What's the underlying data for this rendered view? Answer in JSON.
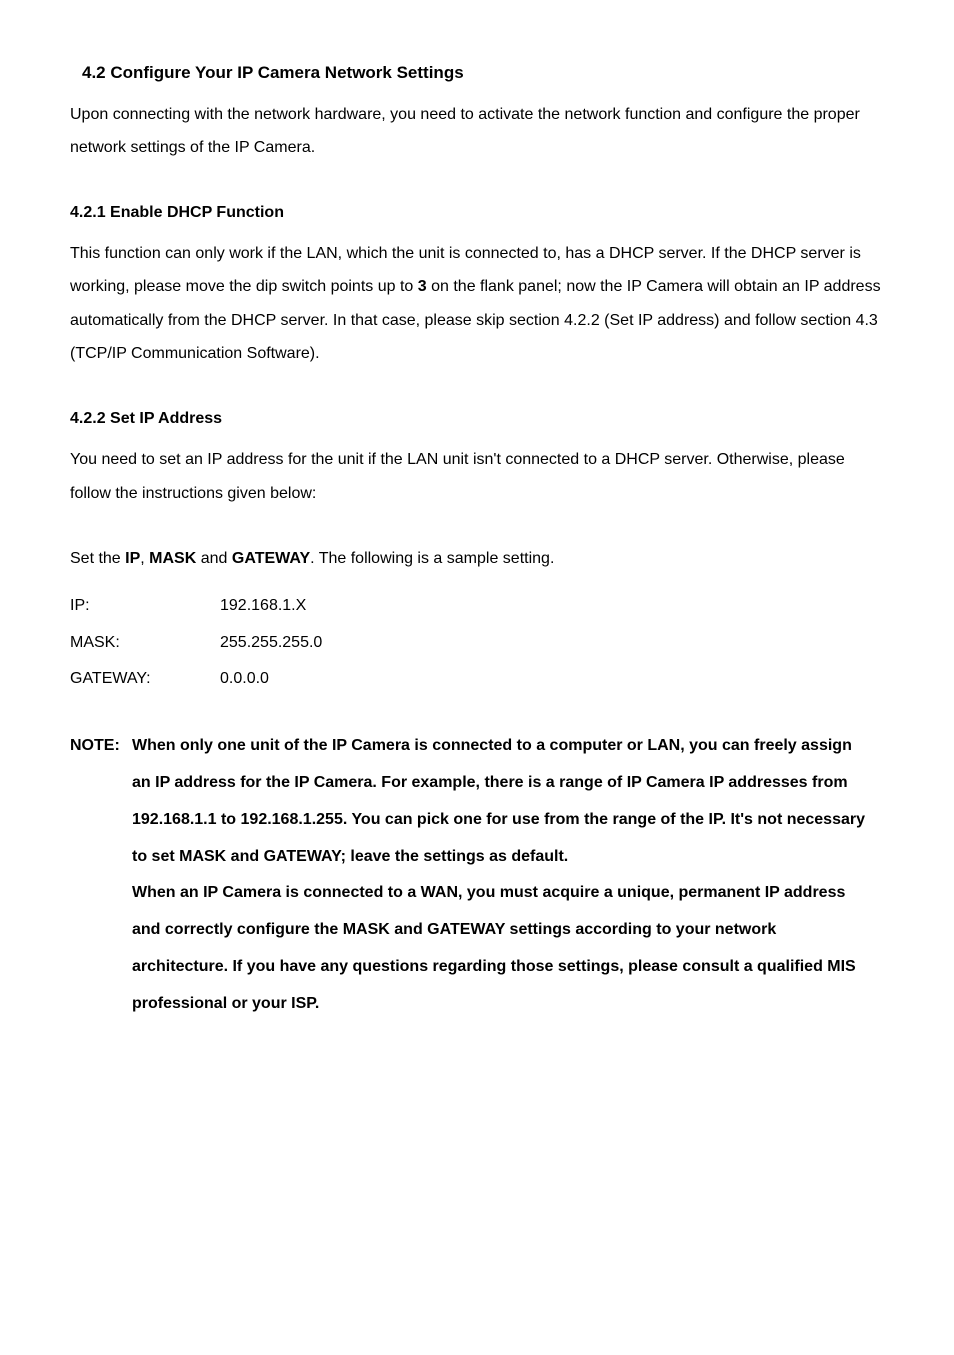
{
  "section": {
    "title": "4.2 Configure Your IP Camera Network Settings",
    "intro": "Upon connecting with the network hardware, you need to activate the network function and configure the proper network settings of the IP Camera."
  },
  "sub1": {
    "title": "4.2.1 Enable DHCP Function",
    "body_a": "This function can only work if the LAN, which the unit is connected to, has a DHCP server. If the DHCP server is working, please move the dip switch points up to ",
    "body_bold": "3",
    "body_b": " on the flank panel; now the IP Camera will obtain an IP address automatically from the DHCP server. In that case, please skip section 4.2.2 (Set IP address) and follow section 4.3 (TCP/IP Communication Software)."
  },
  "sub2": {
    "title": "4.2.2 Set IP Address",
    "body": "You need to set an IP address for the unit if the LAN unit isn't connected to a DHCP server. Otherwise, please follow the instructions given below:",
    "setline_a": "Set the ",
    "setline_ip": "IP",
    "setline_comma": ", ",
    "setline_mask": "MASK",
    "setline_and": " and ",
    "setline_gw": "GATEWAY",
    "setline_b": ". The following is a sample setting.",
    "samples": {
      "ip_label": "IP:",
      "ip_value": "192.168.1.X",
      "mask_label": "MASK:",
      "mask_value": "255.255.255.0",
      "gw_label": "GATEWAY:",
      "gw_value": "0.0.0.0"
    }
  },
  "note": {
    "prefix": "NOTE:",
    "p1": "When only one unit of the IP Camera is connected to a computer or LAN, you can freely assign an IP address for the IP Camera. For example, there is a range of IP Camera IP addresses from 192.168.1.1 to 192.168.1.255. You can pick one for use from the range of the IP. It's not necessary to set MASK and GATEWAY; leave the settings as default.",
    "p2": "When an IP Camera is connected to a WAN, you must acquire a unique, permanent IP address and correctly configure the MASK and GATEWAY settings according to your network architecture. If you have any questions regarding those settings, please consult a qualified MIS professional or your ISP."
  }
}
